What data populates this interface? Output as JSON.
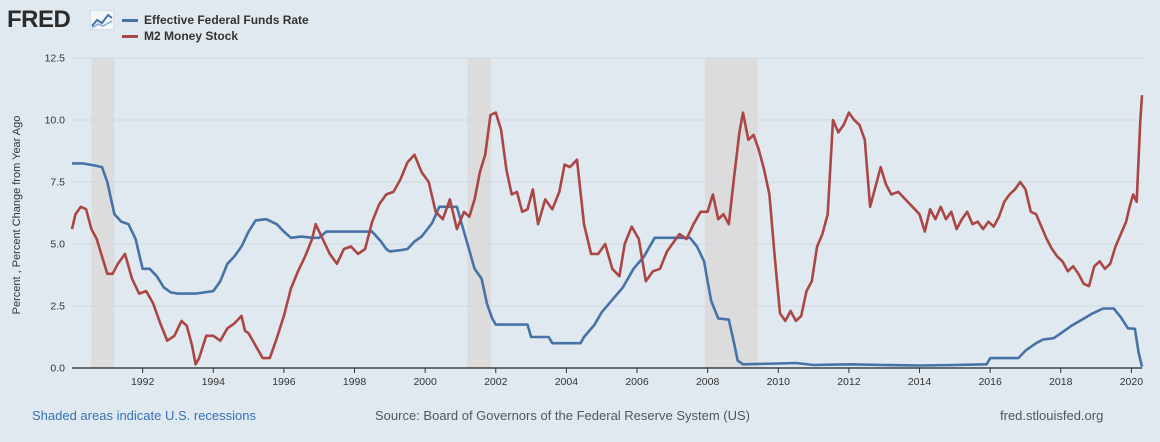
{
  "header": {
    "logo_text": "FRED",
    "legend": [
      {
        "label": "Effective Federal Funds Rate",
        "color": "#4572a7"
      },
      {
        "label": "M2 Money Stock",
        "color": "#aa4643"
      }
    ]
  },
  "footer": {
    "recession_note": "Shaded areas indicate U.S. recessions",
    "source": "Source: Board of Governors of the Federal Reserve System (US)",
    "site": "fred.stlouisfed.org"
  },
  "chart_data": {
    "type": "line",
    "title": "",
    "xlabel": "",
    "ylabel": "Percent , Percent Change from Year Ago",
    "xlim": [
      1990.0,
      2020.3
    ],
    "ylim": [
      0,
      12.5
    ],
    "yticks": [
      "0.0",
      "2.5",
      "5.0",
      "7.5",
      "10.0",
      "12.5"
    ],
    "ytick_values": [
      0,
      2.5,
      5,
      7.5,
      10,
      12.5
    ],
    "xticks": [
      "1992",
      "1994",
      "1996",
      "1998",
      "2000",
      "2002",
      "2004",
      "2006",
      "2008",
      "2010",
      "2012",
      "2014",
      "2016",
      "2018",
      "2020"
    ],
    "xtick_values": [
      1992,
      1994,
      1996,
      1998,
      2000,
      2002,
      2004,
      2006,
      2008,
      2010,
      2012,
      2014,
      2016,
      2018,
      2020
    ],
    "recessions": [
      [
        1990.55,
        1991.2
      ],
      [
        2001.2,
        2001.87
      ],
      [
        2007.92,
        2009.42
      ]
    ],
    "series": [
      {
        "name": "Effective Federal Funds Rate",
        "color": "#4572a7",
        "points": [
          [
            1990.0,
            8.25
          ],
          [
            1990.3,
            8.25
          ],
          [
            1990.5,
            8.2
          ],
          [
            1990.7,
            8.15
          ],
          [
            1990.85,
            8.1
          ],
          [
            1991.0,
            7.5
          ],
          [
            1991.2,
            6.2
          ],
          [
            1991.4,
            5.9
          ],
          [
            1991.6,
            5.8
          ],
          [
            1991.8,
            5.2
          ],
          [
            1992.0,
            4.0
          ],
          [
            1992.2,
            4.0
          ],
          [
            1992.4,
            3.7
          ],
          [
            1992.6,
            3.25
          ],
          [
            1992.8,
            3.05
          ],
          [
            1993.0,
            3.0
          ],
          [
            1993.5,
            3.0
          ],
          [
            1994.0,
            3.1
          ],
          [
            1994.2,
            3.5
          ],
          [
            1994.4,
            4.2
          ],
          [
            1994.6,
            4.5
          ],
          [
            1994.8,
            4.9
          ],
          [
            1995.0,
            5.5
          ],
          [
            1995.2,
            5.95
          ],
          [
            1995.5,
            6.0
          ],
          [
            1995.8,
            5.8
          ],
          [
            1996.0,
            5.5
          ],
          [
            1996.2,
            5.25
          ],
          [
            1996.5,
            5.3
          ],
          [
            1996.8,
            5.25
          ],
          [
            1997.0,
            5.25
          ],
          [
            1997.2,
            5.5
          ],
          [
            1997.6,
            5.5
          ],
          [
            1998.0,
            5.5
          ],
          [
            1998.5,
            5.5
          ],
          [
            1998.75,
            5.1
          ],
          [
            1998.9,
            4.8
          ],
          [
            1999.0,
            4.7
          ],
          [
            1999.3,
            4.75
          ],
          [
            1999.5,
            4.8
          ],
          [
            1999.7,
            5.1
          ],
          [
            1999.9,
            5.3
          ],
          [
            2000.2,
            5.85
          ],
          [
            2000.4,
            6.5
          ],
          [
            2000.7,
            6.5
          ],
          [
            2000.9,
            6.5
          ],
          [
            2001.0,
            6.0
          ],
          [
            2001.2,
            5.0
          ],
          [
            2001.4,
            4.0
          ],
          [
            2001.6,
            3.6
          ],
          [
            2001.75,
            2.6
          ],
          [
            2001.9,
            2.0
          ],
          [
            2002.0,
            1.75
          ],
          [
            2002.5,
            1.75
          ],
          [
            2002.9,
            1.75
          ],
          [
            2003.0,
            1.25
          ],
          [
            2003.5,
            1.25
          ],
          [
            2003.6,
            1.0
          ],
          [
            2004.0,
            1.0
          ],
          [
            2004.4,
            1.0
          ],
          [
            2004.5,
            1.25
          ],
          [
            2004.8,
            1.75
          ],
          [
            2005.0,
            2.25
          ],
          [
            2005.3,
            2.75
          ],
          [
            2005.6,
            3.25
          ],
          [
            2005.9,
            4.0
          ],
          [
            2006.2,
            4.5
          ],
          [
            2006.5,
            5.25
          ],
          [
            2006.8,
            5.25
          ],
          [
            2007.0,
            5.25
          ],
          [
            2007.5,
            5.25
          ],
          [
            2007.7,
            4.9
          ],
          [
            2007.9,
            4.3
          ],
          [
            2008.0,
            3.5
          ],
          [
            2008.1,
            2.7
          ],
          [
            2008.3,
            2.0
          ],
          [
            2008.6,
            1.95
          ],
          [
            2008.75,
            1.0
          ],
          [
            2008.85,
            0.3
          ],
          [
            2009.0,
            0.15
          ],
          [
            2010.0,
            0.18
          ],
          [
            2010.5,
            0.2
          ],
          [
            2011.0,
            0.12
          ],
          [
            2012.0,
            0.15
          ],
          [
            2013.0,
            0.12
          ],
          [
            2014.0,
            0.1
          ],
          [
            2015.0,
            0.12
          ],
          [
            2015.9,
            0.15
          ],
          [
            2016.0,
            0.4
          ],
          [
            2016.8,
            0.4
          ],
          [
            2017.0,
            0.7
          ],
          [
            2017.3,
            1.0
          ],
          [
            2017.5,
            1.15
          ],
          [
            2017.8,
            1.2
          ],
          [
            2018.0,
            1.4
          ],
          [
            2018.3,
            1.7
          ],
          [
            2018.6,
            1.95
          ],
          [
            2018.9,
            2.2
          ],
          [
            2019.2,
            2.4
          ],
          [
            2019.5,
            2.4
          ],
          [
            2019.7,
            2.05
          ],
          [
            2019.9,
            1.6
          ],
          [
            2020.1,
            1.58
          ],
          [
            2020.2,
            0.65
          ],
          [
            2020.3,
            0.05
          ]
        ]
      },
      {
        "name": "M2 Money Stock",
        "color": "#aa4643",
        "points": [
          [
            1990.0,
            5.6
          ],
          [
            1990.1,
            6.2
          ],
          [
            1990.25,
            6.5
          ],
          [
            1990.4,
            6.4
          ],
          [
            1990.55,
            5.6
          ],
          [
            1990.7,
            5.2
          ],
          [
            1990.85,
            4.5
          ],
          [
            1991.0,
            3.8
          ],
          [
            1991.15,
            3.8
          ],
          [
            1991.3,
            4.2
          ],
          [
            1991.5,
            4.6
          ],
          [
            1991.7,
            3.6
          ],
          [
            1991.9,
            3.0
          ],
          [
            1992.1,
            3.1
          ],
          [
            1992.3,
            2.6
          ],
          [
            1992.5,
            1.8
          ],
          [
            1992.7,
            1.1
          ],
          [
            1992.9,
            1.3
          ],
          [
            1993.1,
            1.9
          ],
          [
            1993.25,
            1.7
          ],
          [
            1993.4,
            0.9
          ],
          [
            1993.5,
            0.15
          ],
          [
            1993.6,
            0.4
          ],
          [
            1993.8,
            1.3
          ],
          [
            1994.0,
            1.3
          ],
          [
            1994.2,
            1.1
          ],
          [
            1994.4,
            1.6
          ],
          [
            1994.6,
            1.8
          ],
          [
            1994.8,
            2.1
          ],
          [
            1994.9,
            1.5
          ],
          [
            1995.0,
            1.4
          ],
          [
            1995.2,
            0.9
          ],
          [
            1995.4,
            0.4
          ],
          [
            1995.6,
            0.4
          ],
          [
            1995.8,
            1.2
          ],
          [
            1996.0,
            2.1
          ],
          [
            1996.2,
            3.2
          ],
          [
            1996.4,
            3.9
          ],
          [
            1996.6,
            4.5
          ],
          [
            1996.8,
            5.2
          ],
          [
            1996.9,
            5.8
          ],
          [
            1997.1,
            5.2
          ],
          [
            1997.3,
            4.6
          ],
          [
            1997.5,
            4.2
          ],
          [
            1997.7,
            4.8
          ],
          [
            1997.9,
            4.9
          ],
          [
            1998.1,
            4.6
          ],
          [
            1998.3,
            4.8
          ],
          [
            1998.5,
            5.9
          ],
          [
            1998.7,
            6.6
          ],
          [
            1998.9,
            7.0
          ],
          [
            1999.1,
            7.1
          ],
          [
            1999.3,
            7.6
          ],
          [
            1999.5,
            8.3
          ],
          [
            1999.7,
            8.6
          ],
          [
            1999.9,
            7.9
          ],
          [
            2000.1,
            7.5
          ],
          [
            2000.3,
            6.3
          ],
          [
            2000.5,
            6.0
          ],
          [
            2000.7,
            6.8
          ],
          [
            2000.9,
            5.6
          ],
          [
            2001.1,
            6.3
          ],
          [
            2001.25,
            6.1
          ],
          [
            2001.4,
            6.8
          ],
          [
            2001.55,
            7.9
          ],
          [
            2001.7,
            8.6
          ],
          [
            2001.85,
            10.2
          ],
          [
            2002.0,
            10.3
          ],
          [
            2002.15,
            9.6
          ],
          [
            2002.3,
            8.0
          ],
          [
            2002.45,
            7.0
          ],
          [
            2002.6,
            7.1
          ],
          [
            2002.75,
            6.3
          ],
          [
            2002.9,
            6.4
          ],
          [
            2003.05,
            7.2
          ],
          [
            2003.2,
            5.8
          ],
          [
            2003.4,
            6.8
          ],
          [
            2003.6,
            6.4
          ],
          [
            2003.8,
            7.1
          ],
          [
            2003.95,
            8.2
          ],
          [
            2004.1,
            8.1
          ],
          [
            2004.3,
            8.4
          ],
          [
            2004.5,
            5.8
          ],
          [
            2004.7,
            4.6
          ],
          [
            2004.9,
            4.6
          ],
          [
            2005.1,
            5.0
          ],
          [
            2005.3,
            4.0
          ],
          [
            2005.5,
            3.7
          ],
          [
            2005.65,
            5.0
          ],
          [
            2005.85,
            5.7
          ],
          [
            2006.05,
            5.2
          ],
          [
            2006.25,
            3.5
          ],
          [
            2006.45,
            3.9
          ],
          [
            2006.65,
            4.0
          ],
          [
            2006.85,
            4.7
          ],
          [
            2007.0,
            5.0
          ],
          [
            2007.2,
            5.4
          ],
          [
            2007.4,
            5.2
          ],
          [
            2007.6,
            5.8
          ],
          [
            2007.8,
            6.3
          ],
          [
            2008.0,
            6.3
          ],
          [
            2008.15,
            7.0
          ],
          [
            2008.3,
            6.0
          ],
          [
            2008.45,
            6.2
          ],
          [
            2008.6,
            5.8
          ],
          [
            2008.75,
            7.7
          ],
          [
            2008.9,
            9.5
          ],
          [
            2009.0,
            10.3
          ],
          [
            2009.15,
            9.2
          ],
          [
            2009.3,
            9.4
          ],
          [
            2009.45,
            8.8
          ],
          [
            2009.6,
            8.0
          ],
          [
            2009.75,
            7.0
          ],
          [
            2009.9,
            4.5
          ],
          [
            2010.05,
            2.2
          ],
          [
            2010.2,
            1.9
          ],
          [
            2010.35,
            2.3
          ],
          [
            2010.5,
            1.9
          ],
          [
            2010.65,
            2.1
          ],
          [
            2010.8,
            3.1
          ],
          [
            2010.95,
            3.5
          ],
          [
            2011.1,
            4.9
          ],
          [
            2011.25,
            5.4
          ],
          [
            2011.4,
            6.2
          ],
          [
            2011.55,
            10.0
          ],
          [
            2011.7,
            9.5
          ],
          [
            2011.85,
            9.8
          ],
          [
            2012.0,
            10.3
          ],
          [
            2012.15,
            10.0
          ],
          [
            2012.3,
            9.8
          ],
          [
            2012.45,
            9.2
          ],
          [
            2012.6,
            6.5
          ],
          [
            2012.75,
            7.3
          ],
          [
            2012.9,
            8.1
          ],
          [
            2013.05,
            7.4
          ],
          [
            2013.2,
            7.0
          ],
          [
            2013.4,
            7.1
          ],
          [
            2013.6,
            6.8
          ],
          [
            2013.8,
            6.5
          ],
          [
            2014.0,
            6.2
          ],
          [
            2014.15,
            5.5
          ],
          [
            2014.3,
            6.4
          ],
          [
            2014.45,
            6.0
          ],
          [
            2014.6,
            6.5
          ],
          [
            2014.75,
            6.0
          ],
          [
            2014.9,
            6.3
          ],
          [
            2015.05,
            5.6
          ],
          [
            2015.2,
            6.0
          ],
          [
            2015.35,
            6.3
          ],
          [
            2015.5,
            5.8
          ],
          [
            2015.65,
            5.9
          ],
          [
            2015.8,
            5.6
          ],
          [
            2015.95,
            5.9
          ],
          [
            2016.1,
            5.7
          ],
          [
            2016.25,
            6.1
          ],
          [
            2016.4,
            6.7
          ],
          [
            2016.55,
            7.0
          ],
          [
            2016.7,
            7.2
          ],
          [
            2016.85,
            7.5
          ],
          [
            2017.0,
            7.2
          ],
          [
            2017.15,
            6.3
          ],
          [
            2017.3,
            6.2
          ],
          [
            2017.45,
            5.7
          ],
          [
            2017.6,
            5.2
          ],
          [
            2017.75,
            4.8
          ],
          [
            2017.9,
            4.5
          ],
          [
            2018.05,
            4.3
          ],
          [
            2018.2,
            3.9
          ],
          [
            2018.35,
            4.1
          ],
          [
            2018.5,
            3.8
          ],
          [
            2018.65,
            3.4
          ],
          [
            2018.8,
            3.3
          ],
          [
            2018.95,
            4.1
          ],
          [
            2019.1,
            4.3
          ],
          [
            2019.25,
            4.0
          ],
          [
            2019.4,
            4.2
          ],
          [
            2019.55,
            4.9
          ],
          [
            2019.7,
            5.4
          ],
          [
            2019.85,
            5.9
          ],
          [
            2019.95,
            6.5
          ],
          [
            2020.05,
            7.0
          ],
          [
            2020.15,
            6.7
          ],
          [
            2020.25,
            9.9
          ],
          [
            2020.3,
            11.0
          ]
        ]
      }
    ]
  }
}
